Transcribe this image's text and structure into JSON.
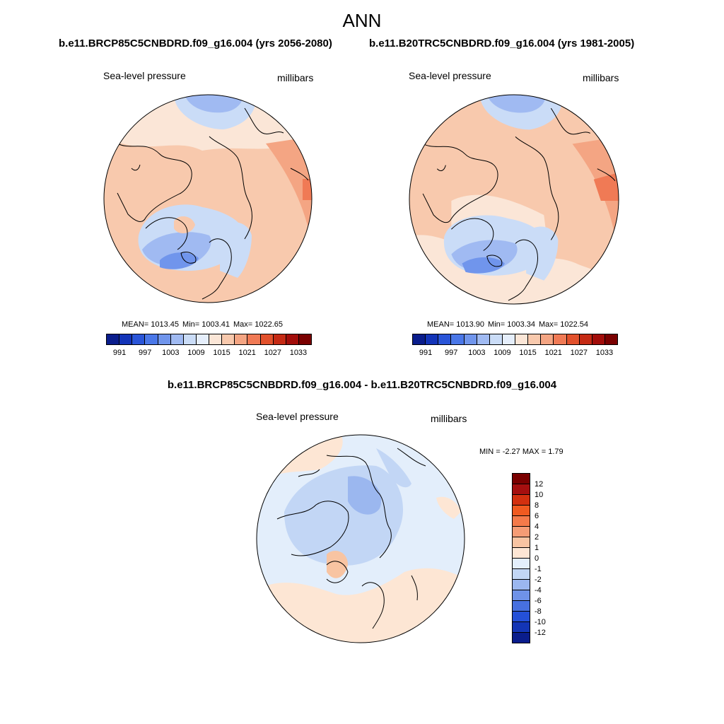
{
  "title": "ANN",
  "panels": [
    {
      "case_title": "b.e11.BRCP85C5CNBDRD.f09_g16.004 (yrs 2056-2080)",
      "variable": "Sea-level pressure",
      "units": "millibars",
      "stats": {
        "mean": "MEAN= 1013.45",
        "min": "Min= 1003.41",
        "max": "Max= 1022.65"
      }
    },
    {
      "case_title": "b.e11.B20TRC5CNBDRD.f09_g16.004 (yrs 1981-2005)",
      "variable": "Sea-level pressure",
      "units": "millibars",
      "stats": {
        "mean": "MEAN= 1013.90",
        "min": "Min= 1003.34",
        "max": "Max= 1022.54"
      }
    }
  ],
  "colorbar": {
    "colors": [
      "#0a1d8c",
      "#1334b8",
      "#2a55d8",
      "#4a77e8",
      "#7095ec",
      "#a0baf2",
      "#cadcf7",
      "#e5eefb",
      "#fbe6d7",
      "#f8c9ad",
      "#f4a583",
      "#f07a55",
      "#e2512c",
      "#c52a14",
      "#a20d0a",
      "#7a0000"
    ],
    "tick_labels": [
      "991",
      "997",
      "1003",
      "1009",
      "1015",
      "1021",
      "1027",
      "1033"
    ]
  },
  "diff": {
    "title": "b.e11.BRCP85C5CNBDRD.f09_g16.004 - b.e11.B20TRC5CNBDRD.f09_g16.004",
    "variable": "Sea-level pressure",
    "units": "millibars",
    "minmax": "MIN =  -2.27 MAX =   1.79",
    "colorbar": {
      "colors": [
        "#7a0000",
        "#a50f0f",
        "#d3300f",
        "#f05a20",
        "#f47a4a",
        "#f59c75",
        "#f8c4a2",
        "#fde6d4",
        "#e3eefb",
        "#c2d6f5",
        "#9bb7ef",
        "#6f92e8",
        "#4770e0",
        "#2450d8",
        "#1335b5",
        "#0a1d8c"
      ],
      "tick_labels": [
        "12",
        "10",
        "8",
        "6",
        "4",
        "2",
        "1",
        "0",
        "-1",
        "-2",
        "-4",
        "-6",
        "-8",
        "-10",
        "-12"
      ]
    }
  }
}
